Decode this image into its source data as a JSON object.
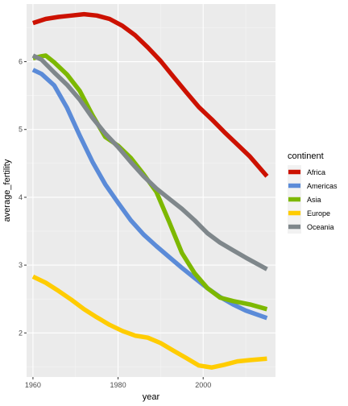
{
  "chart_data": {
    "type": "line",
    "xlabel": "year",
    "ylabel": "average_fertility",
    "xlim": [
      1958.5,
      2017.0
    ],
    "ylim": [
      1.35,
      6.85
    ],
    "x_ticks": [
      1960,
      1980,
      2000
    ],
    "x_tick_labels": [
      "1960",
      "1980",
      "2000"
    ],
    "y_ticks": [
      2,
      3,
      4,
      5,
      6
    ],
    "y_tick_labels": [
      "2",
      "3",
      "4",
      "5",
      "6"
    ],
    "grid": true,
    "legend": {
      "title": "continent",
      "position": "right"
    },
    "series": [
      {
        "name": "Africa",
        "color": "#cc1100",
        "x": [
          1960,
          1963,
          1966,
          1969,
          1972,
          1975,
          1978,
          1981,
          1984,
          1987,
          1990,
          1993,
          1996,
          1999,
          2002,
          2005,
          2008,
          2011,
          2015
        ],
        "y": [
          6.57,
          6.63,
          6.66,
          6.68,
          6.7,
          6.68,
          6.63,
          6.53,
          6.39,
          6.21,
          6.01,
          5.78,
          5.55,
          5.33,
          5.15,
          4.96,
          4.78,
          4.6,
          4.31
        ]
      },
      {
        "name": "Americas",
        "color": "#5b8bd8",
        "x": [
          1960,
          1962,
          1965,
          1968,
          1971,
          1974,
          1977,
          1980,
          1983,
          1986,
          1989,
          1992,
          1995,
          1998,
          2001,
          2004,
          2007,
          2010,
          2015
        ],
        "y": [
          5.88,
          5.82,
          5.65,
          5.32,
          4.91,
          4.52,
          4.19,
          3.92,
          3.66,
          3.45,
          3.28,
          3.12,
          2.96,
          2.81,
          2.66,
          2.53,
          2.42,
          2.33,
          2.22
        ]
      },
      {
        "name": "Asia",
        "color": "#7db800",
        "x": [
          1960,
          1962,
          1963,
          1965,
          1968,
          1971,
          1974,
          1977,
          1980,
          1983,
          1986,
          1989,
          1992,
          1995,
          1998,
          2001,
          2004,
          2007,
          2011,
          2015
        ],
        "y": [
          6.05,
          6.08,
          6.09,
          5.99,
          5.81,
          5.57,
          5.21,
          4.89,
          4.76,
          4.58,
          4.34,
          4.08,
          3.64,
          3.18,
          2.88,
          2.66,
          2.52,
          2.47,
          2.42,
          2.35
        ]
      },
      {
        "name": "Europe",
        "color": "#ffcc00",
        "x": [
          1960,
          1963,
          1966,
          1969,
          1972,
          1975,
          1978,
          1981,
          1984,
          1987,
          1990,
          1993,
          1996,
          1999,
          2002,
          2005,
          2008,
          2011,
          2015
        ],
        "y": [
          2.83,
          2.74,
          2.62,
          2.49,
          2.35,
          2.23,
          2.12,
          2.03,
          1.96,
          1.93,
          1.85,
          1.74,
          1.63,
          1.52,
          1.49,
          1.53,
          1.58,
          1.6,
          1.62
        ]
      },
      {
        "name": "Oceania",
        "color": "#7f878b",
        "x": [
          1960,
          1962,
          1965,
          1968,
          1971,
          1974,
          1977,
          1980,
          1983,
          1986,
          1989,
          1992,
          1995,
          1998,
          2001,
          2004,
          2007,
          2010,
          2015
        ],
        "y": [
          6.09,
          6.03,
          5.84,
          5.66,
          5.44,
          5.17,
          4.94,
          4.74,
          4.52,
          4.31,
          4.13,
          3.98,
          3.83,
          3.66,
          3.47,
          3.33,
          3.22,
          3.11,
          2.94
        ]
      }
    ]
  }
}
